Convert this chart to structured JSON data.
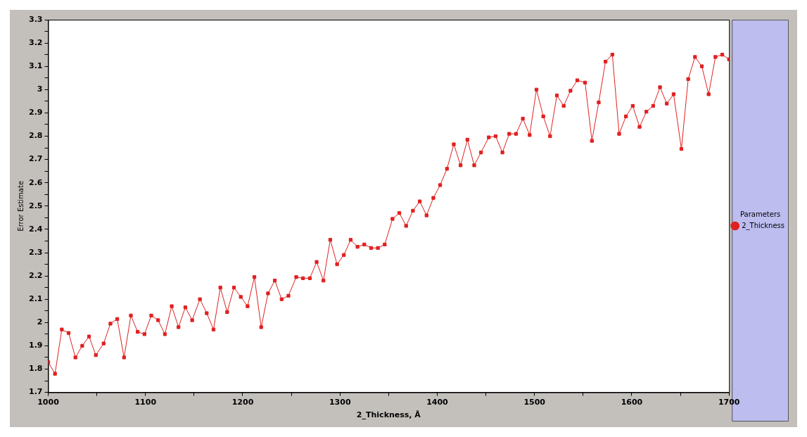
{
  "chart_data": {
    "type": "line",
    "xlabel": "2_Thickness, Å",
    "ylabel": "Error Estimate",
    "legend_title": "Parameters",
    "legend": "right",
    "marker": "square",
    "line_style": "solid",
    "grid": false,
    "xlim": [
      1000,
      1700
    ],
    "ylim": [
      1.7,
      3.3
    ],
    "xticks": [
      1000,
      {
        "value": 1050,
        "label": null
      },
      1100,
      {
        "value": 1150,
        "label": null
      },
      1200,
      {
        "value": 1250,
        "label": null
      },
      1300,
      {
        "value": 1350,
        "label": null
      },
      1400,
      {
        "value": 1450,
        "label": null
      },
      1500,
      {
        "value": 1550,
        "label": null
      },
      1600,
      {
        "value": 1650,
        "label": null
      },
      1700
    ],
    "yticks": [
      1.7,
      {
        "value": 1.75,
        "label": null
      },
      1.8,
      {
        "value": 1.85,
        "label": null
      },
      1.9,
      {
        "value": 1.95,
        "label": null
      },
      2,
      {
        "value": 2.05,
        "label": null
      },
      2.1,
      {
        "value": 2.15,
        "label": null
      },
      2.2,
      {
        "value": 2.25,
        "label": null
      },
      2.3,
      {
        "value": 2.35,
        "label": null
      },
      2.4,
      {
        "value": 2.45,
        "label": null
      },
      2.5,
      {
        "value": 2.55,
        "label": null
      },
      2.6,
      {
        "value": 2.65,
        "label": null
      },
      2.7,
      {
        "value": 2.75,
        "label": null
      },
      2.8,
      {
        "value": 2.85,
        "label": null
      },
      2.9,
      {
        "value": 2.95,
        "label": null
      },
      3,
      {
        "value": 3.05,
        "label": null
      },
      3.1,
      {
        "value": 3.15,
        "label": null
      },
      3.2,
      {
        "value": 3.25,
        "label": null
      },
      3.3
    ],
    "x": [
      1000,
      1007,
      1014,
      1021,
      1028,
      1035,
      1042,
      1049,
      1057,
      1064,
      1071,
      1078,
      1085,
      1092,
      1099,
      1106,
      1113,
      1120,
      1127,
      1134,
      1141,
      1148,
      1156,
      1163,
      1170,
      1177,
      1184,
      1191,
      1198,
      1205,
      1212,
      1219,
      1226,
      1233,
      1240,
      1247,
      1255,
      1262,
      1269,
      1276,
      1283,
      1290,
      1297,
      1304,
      1311,
      1318,
      1325,
      1332,
      1339,
      1346,
      1354,
      1361,
      1368,
      1375,
      1382,
      1389,
      1396,
      1403,
      1410,
      1417,
      1424,
      1431,
      1438,
      1445,
      1453,
      1460,
      1467,
      1474,
      1481,
      1488,
      1495,
      1502,
      1509,
      1516,
      1523,
      1530,
      1537,
      1544,
      1552,
      1559,
      1566,
      1573,
      1580,
      1587,
      1594,
      1601,
      1608,
      1615,
      1622,
      1629,
      1636,
      1643,
      1651,
      1658,
      1665,
      1672,
      1679,
      1686,
      1693,
      1700
    ],
    "series": [
      {
        "name": "2_Thickness",
        "color": "#e02020",
        "values": [
          1.83,
          1.78,
          1.97,
          1.955,
          1.85,
          1.9,
          1.94,
          1.86,
          1.91,
          1.995,
          2.015,
          1.85,
          2.03,
          1.96,
          1.95,
          2.03,
          2.01,
          1.95,
          2.07,
          1.98,
          2.065,
          2.01,
          2.1,
          2.04,
          1.97,
          2.15,
          2.045,
          2.15,
          2.11,
          2.07,
          2.195,
          1.98,
          2.125,
          2.18,
          2.1,
          2.115,
          2.195,
          2.19,
          2.19,
          2.26,
          2.18,
          2.355,
          2.25,
          2.29,
          2.355,
          2.325,
          2.335,
          2.32,
          2.32,
          2.335,
          2.445,
          2.47,
          2.415,
          2.48,
          2.52,
          2.46,
          2.535,
          2.59,
          2.66,
          2.765,
          2.675,
          2.785,
          2.675,
          2.73,
          2.795,
          2.8,
          2.73,
          2.81,
          2.81,
          2.875,
          2.805,
          3,
          2.885,
          2.8,
          2.975,
          2.93,
          2.995,
          3.04,
          3.03,
          2.78,
          2.945,
          3.12,
          3.15,
          2.81,
          2.885,
          2.93,
          2.84,
          2.905,
          2.93,
          3.01,
          2.94,
          2.98,
          2.745,
          3.045,
          3.14,
          3.1,
          2.98,
          3.14,
          3.15,
          3.13
        ]
      }
    ]
  }
}
